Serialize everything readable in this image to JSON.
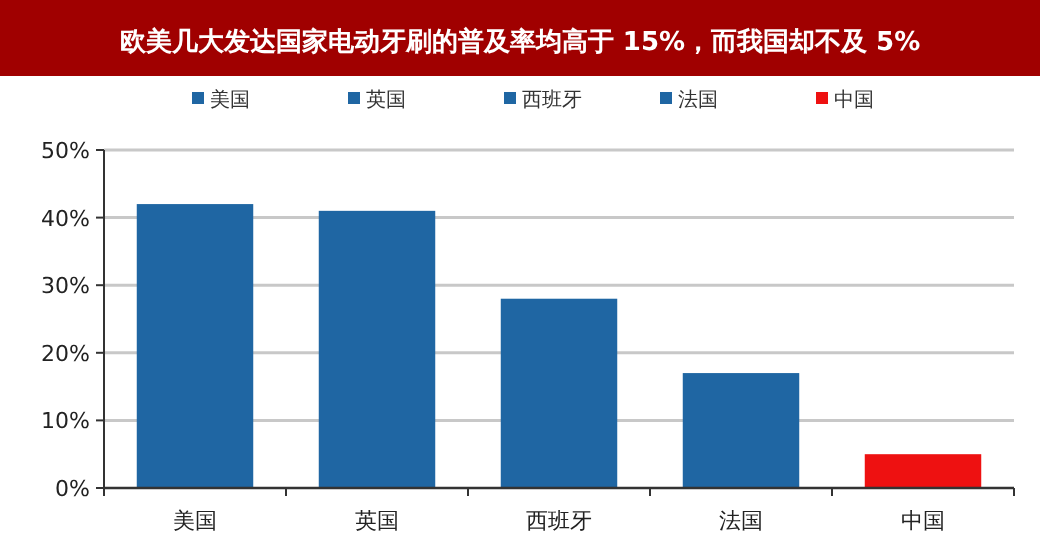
{
  "chart_data": {
    "type": "bar",
    "title": "欧美几大发达国家电动牙刷的普及率均高于 15%，而我国却不及 5%",
    "categories": [
      "美国",
      "英国",
      "西班牙",
      "法国",
      "中国"
    ],
    "series": [
      {
        "name": "美国",
        "color": "#1f66a3",
        "values": [
          42,
          null,
          null,
          null,
          null
        ]
      },
      {
        "name": "英国",
        "color": "#1f66a3",
        "values": [
          null,
          41,
          null,
          null,
          null
        ]
      },
      {
        "name": "西班牙",
        "color": "#1f66a3",
        "values": [
          null,
          null,
          28,
          null,
          null
        ]
      },
      {
        "name": "法国",
        "color": "#1f66a3",
        "values": [
          null,
          null,
          null,
          17,
          null
        ]
      },
      {
        "name": "中国",
        "color": "#ee1111",
        "values": [
          null,
          null,
          null,
          null,
          5
        ]
      }
    ],
    "stacked": true,
    "ylim": [
      0,
      50
    ],
    "yticks": [
      {
        "value": 0,
        "label": "0%"
      },
      {
        "value": 10,
        "label": "10%"
      },
      {
        "value": 20,
        "label": "20%"
      },
      {
        "value": 30,
        "label": "30%"
      },
      {
        "value": 40,
        "label": "40%"
      },
      {
        "value": 50,
        "label": "50%"
      }
    ],
    "grid": "y",
    "legend": "top"
  }
}
